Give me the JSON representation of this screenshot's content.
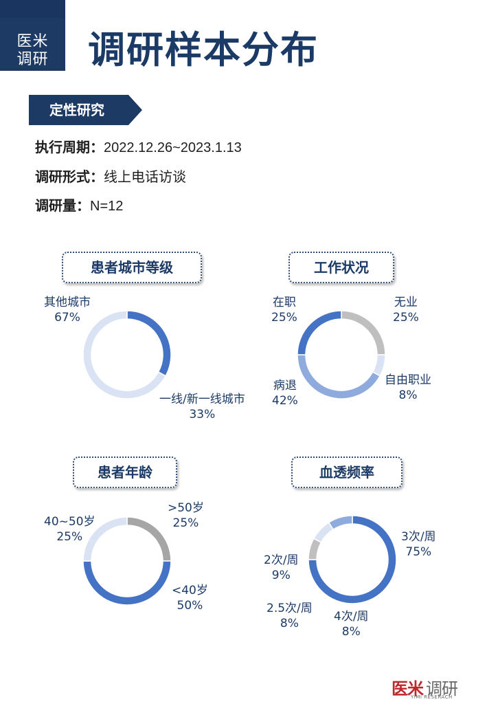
{
  "brand": {
    "line1": "医米",
    "line2": "调研"
  },
  "title": "调研样本分布",
  "section_tag": "定性研究",
  "info": [
    {
      "key": "执行周期：",
      "value": "2022.12.26~2023.1.13"
    },
    {
      "key": "调研形式：",
      "value": "线上电话访谈"
    },
    {
      "key": "调研量：",
      "value": "N=12"
    }
  ],
  "colors": {
    "navy": "#1b3a66",
    "blue": "#4472c4",
    "mid_blue": "#8faadc",
    "light_blue": "#dae3f3",
    "grey": "#a6a6a6",
    "light_grey": "#d9d9d9"
  },
  "chart_data": [
    {
      "type": "pie",
      "donut": true,
      "title": "患者城市等级",
      "categories": [
        "一线/新一线城市",
        "其他城市"
      ],
      "values": [
        33,
        67
      ],
      "labels": [
        "33%",
        "67%"
      ],
      "colors": [
        "#4472c4",
        "#dae3f3"
      ]
    },
    {
      "type": "pie",
      "donut": true,
      "title": "工作状况",
      "categories": [
        "无业",
        "自由职业",
        "病退",
        "在职"
      ],
      "values": [
        25,
        8,
        42,
        25
      ],
      "labels": [
        "25%",
        "8%",
        "42%",
        "25%"
      ],
      "colors": [
        "#bfbfbf",
        "#dae3f3",
        "#8faadc",
        "#4472c4"
      ]
    },
    {
      "type": "pie",
      "donut": true,
      "title": "患者年龄",
      "categories": [
        ">50岁",
        "<40岁",
        "40~50岁"
      ],
      "values": [
        25,
        50,
        25
      ],
      "labels": [
        "25%",
        "50%",
        "25%"
      ],
      "colors": [
        "#a6a6a6",
        "#4472c4",
        "#dae3f3"
      ]
    },
    {
      "type": "pie",
      "donut": true,
      "title": "血透频率",
      "categories": [
        "3次/周",
        "4次/周",
        "2.5次/周",
        "2次/周"
      ],
      "values": [
        75,
        8,
        8,
        9
      ],
      "labels": [
        "75%",
        "8%",
        "8%",
        "9%"
      ],
      "colors": [
        "#4472c4",
        "#bfbfbf",
        "#dae3f3",
        "#8faadc"
      ]
    }
  ],
  "logo": {
    "part1": "医米",
    "part2": "调研",
    "sub": "YIMI RESERACH"
  }
}
